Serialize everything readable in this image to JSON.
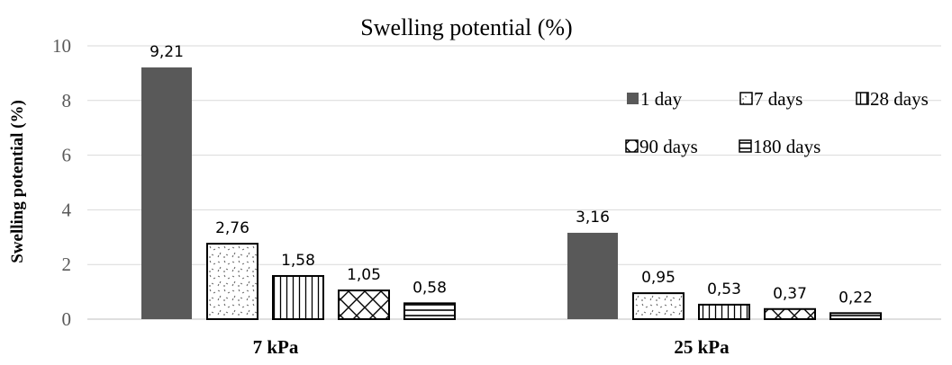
{
  "chart_data": {
    "type": "bar",
    "title": "Swelling potential (%)",
    "ylabel": "Swelling potential (%)",
    "xlabel": "",
    "ylim": [
      0,
      10
    ],
    "yticks": [
      0,
      2,
      4,
      6,
      8,
      10
    ],
    "grid": true,
    "legend_position": "top-right",
    "categories": [
      "7 kPa",
      "25 kPa"
    ],
    "series": [
      {
        "name": "1 day",
        "values": [
          9.21,
          3.16
        ],
        "labels": [
          "9,21",
          "3,16"
        ],
        "pattern": "solid",
        "color": "#595959"
      },
      {
        "name": "7 days",
        "values": [
          2.76,
          0.95
        ],
        "labels": [
          "2,76",
          "0,95"
        ],
        "pattern": "confetti",
        "color": "#000000"
      },
      {
        "name": "28 days",
        "values": [
          1.58,
          0.53
        ],
        "labels": [
          "1,58",
          "0,53"
        ],
        "pattern": "vertical-lines",
        "color": "#000000"
      },
      {
        "name": "90 days",
        "values": [
          1.05,
          0.37
        ],
        "labels": [
          "1,05",
          "0,37"
        ],
        "pattern": "lattice",
        "color": "#000000"
      },
      {
        "name": "180 days",
        "values": [
          0.58,
          0.22
        ],
        "labels": [
          "0,58",
          "0,22"
        ],
        "pattern": "horizontal-lines",
        "color": "#000000"
      }
    ]
  }
}
